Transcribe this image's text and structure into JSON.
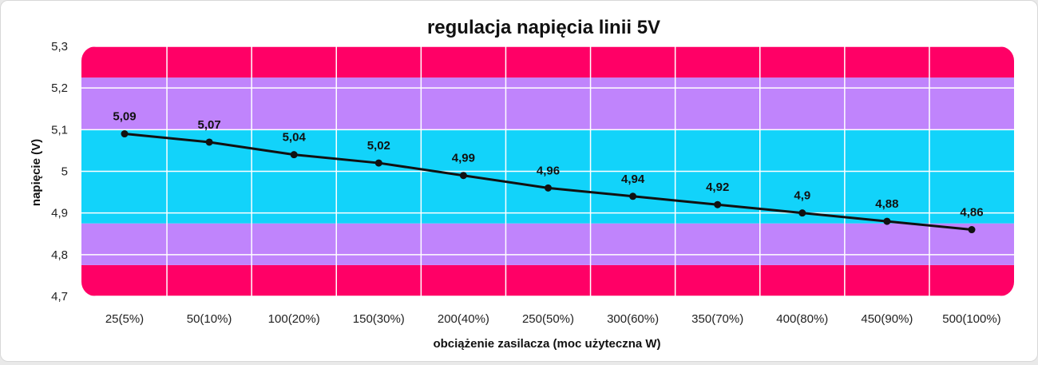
{
  "chart_data": {
    "type": "line",
    "title": "regulacja napięcia linii 5V",
    "xlabel": "obciążenie zasilacza (moc użyteczna W)",
    "ylabel": "napięcie (V)",
    "ylim": [
      4.7,
      5.3
    ],
    "y_ticks": [
      "4,7",
      "4,8",
      "4,9",
      "5",
      "5,1",
      "5,2",
      "5,3"
    ],
    "y_tick_values": [
      4.7,
      4.8,
      4.9,
      5.0,
      5.1,
      5.2,
      5.3
    ],
    "grid": true,
    "categories": [
      "25(5%)",
      "50(10%)",
      "100(20%)",
      "150(30%)",
      "200(40%)",
      "250(50%)",
      "300(60%)",
      "350(70%)",
      "400(80%)",
      "450(90%)",
      "500(100%)"
    ],
    "values": [
      5.09,
      5.07,
      5.04,
      5.02,
      4.99,
      4.96,
      4.94,
      4.92,
      4.9,
      4.88,
      4.86
    ],
    "value_labels": [
      "5,09",
      "5,07",
      "5,04",
      "5,02",
      "4,99",
      "4,96",
      "4,94",
      "4,92",
      "4,9",
      "4,88",
      "4,86"
    ],
    "bands": [
      {
        "from": 4.7,
        "to": 4.775,
        "color": "#ff0066"
      },
      {
        "from": 4.775,
        "to": 4.875,
        "color": "#c084fc"
      },
      {
        "from": 4.875,
        "to": 5.1,
        "color": "#12d3fa"
      },
      {
        "from": 5.1,
        "to": 5.225,
        "color": "#c084fc"
      },
      {
        "from": 5.225,
        "to": 5.3,
        "color": "#ff0066"
      }
    ],
    "line_color": "#111111"
  }
}
